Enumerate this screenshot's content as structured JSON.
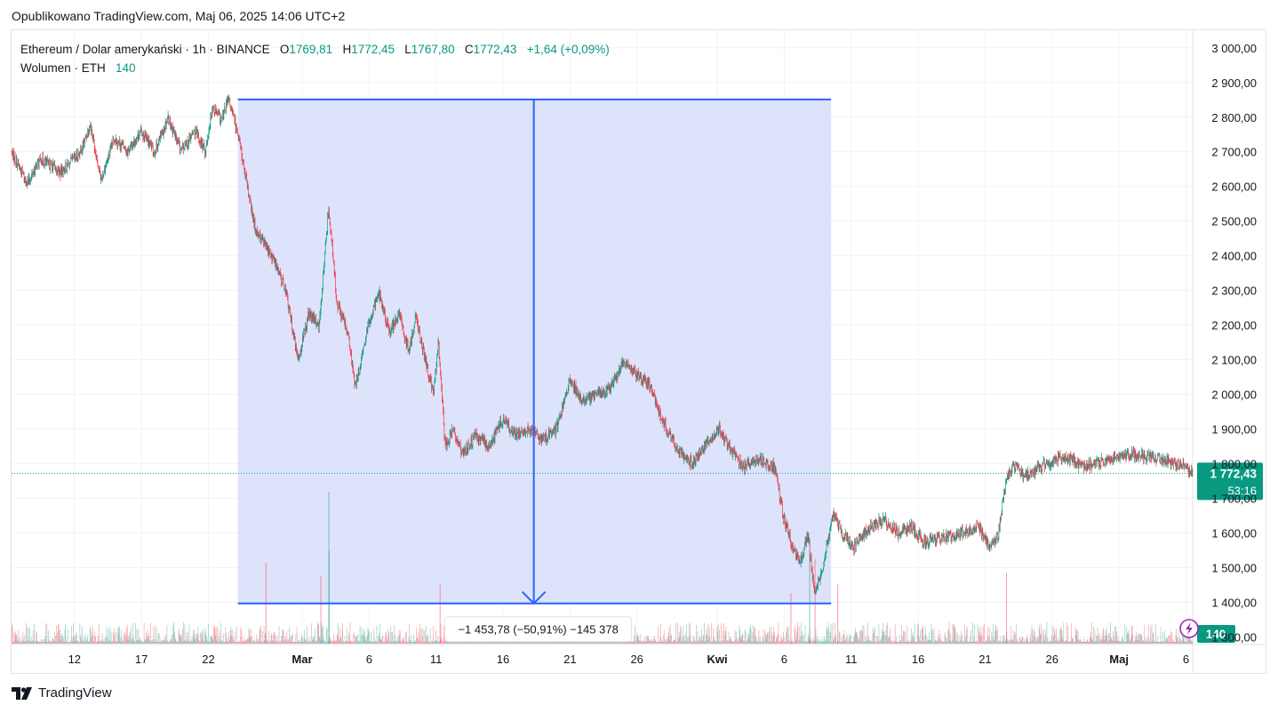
{
  "published": "Opublikowano TradingView.com, Maj 06, 2025 14:06 UTC+2",
  "legend": {
    "symbol": "Ethereum / Dolar amerykański · 1h · BINANCE",
    "open_label": "O",
    "open": "1769,81",
    "high_label": "H",
    "high": "1772,45",
    "low_label": "L",
    "low": "1767,80",
    "close_label": "C",
    "close": "1772,43",
    "change": "+1,64 (+0,09%)",
    "volume_label": "Wolumen · ETH",
    "volume": "140"
  },
  "measure": {
    "label": "−1 453,78 (−50,91%) −145 378"
  },
  "price_badge": {
    "price": "1 772,43",
    "countdown": "53:16"
  },
  "volume_badge": "140",
  "brand": {
    "logo": "TV",
    "name": "TradingView"
  },
  "colors": {
    "up": "#089981",
    "down": "#f23645",
    "measure_line": "#2962ff",
    "measure_fill": "#dbe2fb",
    "axis_text": "#131722"
  },
  "chart_data": {
    "type": "candlestick",
    "timeframe": "1h",
    "y_axis": {
      "ticks": [
        "3 000,00",
        "2 900,00",
        "2 800,00",
        "2 700,00",
        "2 600,00",
        "2 500,00",
        "2 400,00",
        "2 300,00",
        "2 200,00",
        "2 100,00",
        "2 000,00",
        "1 900,00",
        "1 800,00",
        "1 700,00",
        "1 600,00",
        "1 500,00",
        "1 400,00",
        "1 300,00"
      ],
      "ylim": [
        1250,
        3020
      ]
    },
    "x_axis": {
      "labels": [
        "12",
        "17",
        "22",
        "Mar",
        "6",
        "11",
        "16",
        "21",
        "26",
        "Kwi",
        "6",
        "11",
        "16",
        "21",
        "26",
        "Maj",
        "6"
      ],
      "label_days": [
        0,
        5,
        10,
        17,
        22,
        27,
        32,
        37,
        42,
        48,
        53,
        58,
        63,
        68,
        73,
        78,
        83
      ],
      "xlim_days": [
        -4.7,
        83.5
      ]
    },
    "price_path": [
      {
        "day": -4.7,
        "price": 2700
      },
      {
        "day": -3.5,
        "price": 2610
      },
      {
        "day": -2.5,
        "price": 2680
      },
      {
        "day": -1,
        "price": 2640
      },
      {
        "day": 0.5,
        "price": 2700
      },
      {
        "day": 1.2,
        "price": 2780
      },
      {
        "day": 2,
        "price": 2620
      },
      {
        "day": 3,
        "price": 2740
      },
      {
        "day": 4,
        "price": 2700
      },
      {
        "day": 5,
        "price": 2760
      },
      {
        "day": 6,
        "price": 2700
      },
      {
        "day": 7,
        "price": 2800
      },
      {
        "day": 8,
        "price": 2700
      },
      {
        "day": 9,
        "price": 2760
      },
      {
        "day": 9.8,
        "price": 2700
      },
      {
        "day": 10.3,
        "price": 2830
      },
      {
        "day": 11,
        "price": 2790
      },
      {
        "day": 11.5,
        "price": 2850
      },
      {
        "day": 12.2,
        "price": 2760
      },
      {
        "day": 13,
        "price": 2580
      },
      {
        "day": 13.5,
        "price": 2480
      },
      {
        "day": 14,
        "price": 2450
      },
      {
        "day": 15,
        "price": 2380
      },
      {
        "day": 15.8,
        "price": 2300
      },
      {
        "day": 16.7,
        "price": 2100
      },
      {
        "day": 17.5,
        "price": 2230
      },
      {
        "day": 18.3,
        "price": 2200
      },
      {
        "day": 19,
        "price": 2540
      },
      {
        "day": 19.6,
        "price": 2270
      },
      {
        "day": 20.4,
        "price": 2180
      },
      {
        "day": 21,
        "price": 2020
      },
      {
        "day": 22,
        "price": 2200
      },
      {
        "day": 22.7,
        "price": 2300
      },
      {
        "day": 23.5,
        "price": 2180
      },
      {
        "day": 24.3,
        "price": 2230
      },
      {
        "day": 25,
        "price": 2120
      },
      {
        "day": 25.5,
        "price": 2230
      },
      {
        "day": 26.2,
        "price": 2100
      },
      {
        "day": 26.8,
        "price": 2000
      },
      {
        "day": 27.2,
        "price": 2150
      },
      {
        "day": 27.7,
        "price": 1850
      },
      {
        "day": 28.3,
        "price": 1900
      },
      {
        "day": 29,
        "price": 1830
      },
      {
        "day": 30,
        "price": 1880
      },
      {
        "day": 31,
        "price": 1850
      },
      {
        "day": 32,
        "price": 1930
      },
      {
        "day": 33,
        "price": 1880
      },
      {
        "day": 34,
        "price": 1900
      },
      {
        "day": 35,
        "price": 1870
      },
      {
        "day": 36,
        "price": 1900
      },
      {
        "day": 37,
        "price": 2040
      },
      {
        "day": 38,
        "price": 1980
      },
      {
        "day": 39,
        "price": 2000
      },
      {
        "day": 40,
        "price": 2020
      },
      {
        "day": 41,
        "price": 2090
      },
      {
        "day": 42,
        "price": 2060
      },
      {
        "day": 43,
        "price": 2020
      },
      {
        "day": 44,
        "price": 1920
      },
      {
        "day": 45,
        "price": 1840
      },
      {
        "day": 46.2,
        "price": 1800
      },
      {
        "day": 47,
        "price": 1850
      },
      {
        "day": 48.2,
        "price": 1900
      },
      {
        "day": 49,
        "price": 1840
      },
      {
        "day": 50,
        "price": 1790
      },
      {
        "day": 51.2,
        "price": 1810
      },
      {
        "day": 52.3,
        "price": 1790
      },
      {
        "day": 53,
        "price": 1640
      },
      {
        "day": 53.7,
        "price": 1550
      },
      {
        "day": 54.3,
        "price": 1520
      },
      {
        "day": 54.8,
        "price": 1600
      },
      {
        "day": 55.3,
        "price": 1420
      },
      {
        "day": 56,
        "price": 1520
      },
      {
        "day": 56.7,
        "price": 1660
      },
      {
        "day": 57.3,
        "price": 1600
      },
      {
        "day": 58.2,
        "price": 1560
      },
      {
        "day": 59.5,
        "price": 1620
      },
      {
        "day": 60.5,
        "price": 1640
      },
      {
        "day": 61.5,
        "price": 1600
      },
      {
        "day": 62.5,
        "price": 1620
      },
      {
        "day": 63.5,
        "price": 1570
      },
      {
        "day": 65,
        "price": 1590
      },
      {
        "day": 66.5,
        "price": 1600
      },
      {
        "day": 67.5,
        "price": 1620
      },
      {
        "day": 68.3,
        "price": 1560
      },
      {
        "day": 69,
        "price": 1590
      },
      {
        "day": 69.6,
        "price": 1760
      },
      {
        "day": 70.3,
        "price": 1800
      },
      {
        "day": 71,
        "price": 1760
      },
      {
        "day": 72.5,
        "price": 1800
      },
      {
        "day": 74,
        "price": 1820
      },
      {
        "day": 75.5,
        "price": 1790
      },
      {
        "day": 77,
        "price": 1810
      },
      {
        "day": 78.5,
        "price": 1830
      },
      {
        "day": 80,
        "price": 1820
      },
      {
        "day": 81.5,
        "price": 1810
      },
      {
        "day": 83,
        "price": 1790
      },
      {
        "day": 83.5,
        "price": 1772.43
      }
    ],
    "volume_spikes": [
      {
        "day": 19,
        "volume": 0.9
      },
      {
        "day": 19,
        "volume": 0.55
      },
      {
        "day": 14.3,
        "volume": 0.48
      },
      {
        "day": 18.4,
        "volume": 0.4
      },
      {
        "day": 27.3,
        "volume": 0.35
      },
      {
        "day": 54.9,
        "volume": 0.55
      },
      {
        "day": 55.3,
        "volume": 0.5
      },
      {
        "day": 57,
        "volume": 0.35
      },
      {
        "day": 69.6,
        "volume": 0.42
      },
      {
        "day": 53.5,
        "volume": 0.3
      }
    ],
    "measurement": {
      "start_day": 12.2,
      "end_day": 56.5,
      "top_price": 2851,
      "bottom_price": 1397,
      "arrow_day": 34.3,
      "change": "−1 453,78",
      "change_pct": "−50,91%",
      "bars": "−145 378"
    },
    "last_price": 1772.43
  }
}
